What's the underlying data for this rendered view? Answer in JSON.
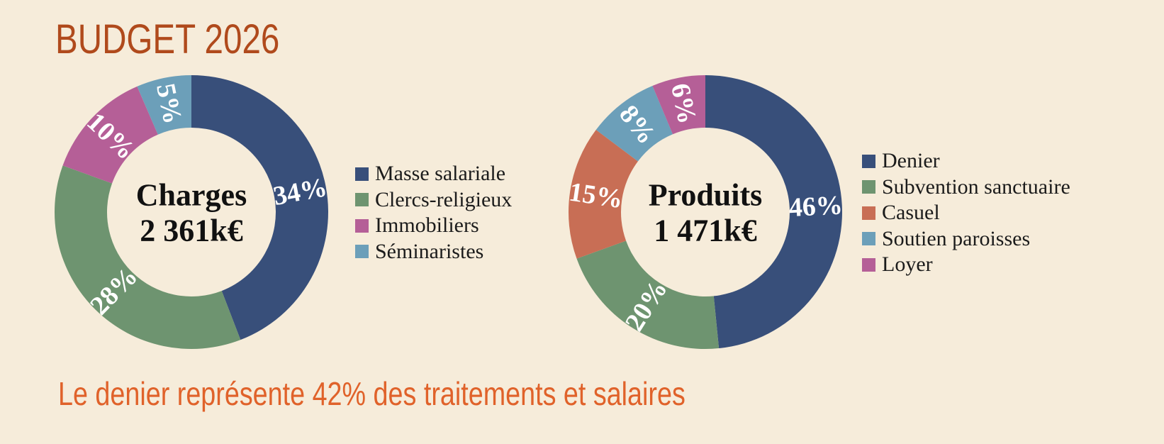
{
  "title": "BUDGET 2026",
  "footer": "Le denier représente 42% des traitements et salaires",
  "chart_data": [
    {
      "type": "pie",
      "center_label": "Charges",
      "center_value": "2 361k€",
      "categories": [
        "Masse salariale",
        "Clercs-religieux",
        "Immobiliers",
        "Séminaristes"
      ],
      "values": [
        34,
        28,
        10,
        5
      ],
      "value_labels": [
        "34%",
        "28%",
        "10%",
        "5%"
      ],
      "colors": [
        "#384f7a",
        "#6e9470",
        "#b55f97",
        "#6c9fb9"
      ],
      "legend_position": "right"
    },
    {
      "type": "pie",
      "center_label": "Produits",
      "center_value": "1 471k€",
      "categories": [
        "Denier",
        "Subvention sanctuaire",
        "Casuel",
        "Soutien paroisses",
        "Loyer"
      ],
      "values": [
        46,
        20,
        15,
        8,
        6
      ],
      "value_labels": [
        "46%",
        "20%",
        "15%",
        "8%",
        "6%"
      ],
      "colors": [
        "#384f7a",
        "#6e9470",
        "#c86e55",
        "#6c9fb9",
        "#b55f97"
      ],
      "legend_position": "right"
    }
  ]
}
